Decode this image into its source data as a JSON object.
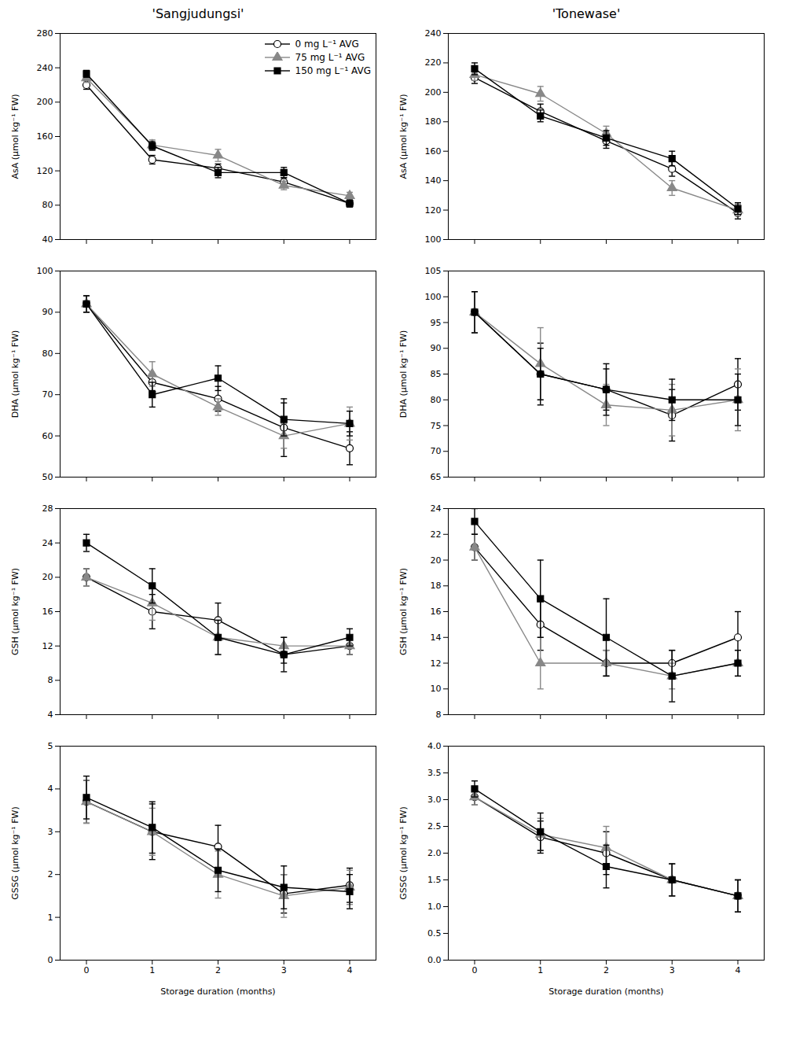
{
  "chart_data": [
    {
      "type": "line",
      "title": "'Sangjudungsi'",
      "ylabel": "AsA (μmol kg⁻¹ FW)",
      "x": [
        0,
        1,
        2,
        3,
        4
      ],
      "xlim": [
        -0.4,
        4.4
      ],
      "xticks": [
        0,
        1,
        2,
        3,
        4
      ],
      "ylim": [
        40,
        280
      ],
      "yticks": [
        40,
        80,
        120,
        160,
        200,
        240,
        280
      ],
      "grid": false,
      "tick_labels": "y",
      "legend": "upper right",
      "series": [
        {
          "name": "0 mg L⁻¹ AVG",
          "color": "#000000",
          "marker": "circle_open",
          "values": [
            220,
            133,
            123,
            107,
            82
          ],
          "yerr": [
            5,
            5,
            5,
            5,
            4
          ]
        },
        {
          "name": "75 mg L⁻¹ AVG",
          "color": "#888888",
          "marker": "triangle",
          "values": [
            228,
            150,
            138,
            103,
            91
          ],
          "yerr": [
            5,
            6,
            7,
            5,
            4
          ]
        },
        {
          "name": "150 mg L⁻¹ AVG",
          "color": "#000000",
          "marker": "square",
          "values": [
            233,
            149,
            118,
            118,
            82
          ],
          "yerr": [
            4,
            5,
            6,
            6,
            4
          ]
        }
      ]
    },
    {
      "type": "line",
      "title": "'Tonewase'",
      "ylabel": "AsA (μmol kg⁻¹ FW)",
      "x": [
        0,
        1,
        2,
        3,
        4
      ],
      "xlim": [
        -0.4,
        4.4
      ],
      "xticks": [
        0,
        1,
        2,
        3,
        4
      ],
      "ylim": [
        100,
        240
      ],
      "yticks": [
        100,
        120,
        140,
        160,
        180,
        200,
        220,
        240
      ],
      "grid": false,
      "tick_labels": "y",
      "series": [
        {
          "name": "0 mg L⁻¹ AVG",
          "color": "#000000",
          "marker": "circle_open",
          "values": [
            210,
            187,
            167,
            148,
            118
          ],
          "yerr": [
            4,
            5,
            5,
            5,
            4
          ]
        },
        {
          "name": "75 mg L⁻¹ AVG",
          "color": "#888888",
          "marker": "triangle",
          "values": [
            212,
            199,
            172,
            135,
            120
          ],
          "yerr": [
            4,
            5,
            5,
            5,
            4
          ]
        },
        {
          "name": "150 mg L⁻¹ AVG",
          "color": "#000000",
          "marker": "square",
          "values": [
            216,
            184,
            169,
            155,
            121
          ],
          "yerr": [
            4,
            4,
            5,
            5,
            4
          ]
        }
      ]
    },
    {
      "type": "line",
      "ylabel": "DHA (μmol kg⁻¹ FW)",
      "x": [
        0,
        1,
        2,
        3,
        4
      ],
      "xlim": [
        -0.4,
        4.4
      ],
      "xticks": [
        0,
        1,
        2,
        3,
        4
      ],
      "ylim": [
        50,
        100
      ],
      "yticks": [
        50,
        60,
        70,
        80,
        90,
        100
      ],
      "grid": false,
      "tick_labels": "y",
      "series": [
        {
          "name": "0 mg L⁻¹ AVG",
          "color": "#000000",
          "marker": "circle_open",
          "values": [
            92,
            73,
            69,
            62,
            57
          ],
          "yerr": [
            2,
            2,
            3,
            7,
            4
          ]
        },
        {
          "name": "75 mg L⁻¹ AVG",
          "color": "#888888",
          "marker": "triangle",
          "values": [
            92,
            75,
            67,
            60,
            63
          ],
          "yerr": [
            2,
            3,
            2,
            3,
            4
          ]
        },
        {
          "name": "150 mg L⁻¹ AVG",
          "color": "#000000",
          "marker": "square",
          "values": [
            92,
            70,
            74,
            64,
            63
          ],
          "yerr": [
            2,
            3,
            3,
            4,
            3
          ]
        }
      ]
    },
    {
      "type": "line",
      "ylabel": "DHA (μmol kg⁻¹ FW)",
      "x": [
        0,
        1,
        2,
        3,
        4
      ],
      "xlim": [
        -0.4,
        4.4
      ],
      "xticks": [
        0,
        1,
        2,
        3,
        4
      ],
      "ylim": [
        65,
        105
      ],
      "yticks": [
        65,
        70,
        75,
        80,
        85,
        90,
        95,
        100,
        105
      ],
      "grid": false,
      "tick_labels": "y",
      "series": [
        {
          "name": "0 mg L⁻¹ AVG",
          "color": "#000000",
          "marker": "circle_open",
          "values": [
            97,
            85,
            82,
            77,
            83
          ],
          "yerr": [
            4,
            6,
            4,
            5,
            5
          ]
        },
        {
          "name": "75 mg L⁻¹ AVG",
          "color": "#888888",
          "marker": "triangle",
          "values": [
            97,
            87,
            79,
            78,
            80
          ],
          "yerr": [
            4,
            7,
            4,
            5,
            6
          ]
        },
        {
          "name": "150 mg L⁻¹ AVG",
          "color": "#000000",
          "marker": "square",
          "values": [
            97,
            85,
            82,
            80,
            80
          ],
          "yerr": [
            4,
            5,
            5,
            4,
            5
          ]
        }
      ]
    },
    {
      "type": "line",
      "ylabel": "GSH (μmol kg⁻¹ FW)",
      "x": [
        0,
        1,
        2,
        3,
        4
      ],
      "xlim": [
        -0.4,
        4.4
      ],
      "xticks": [
        0,
        1,
        2,
        3,
        4
      ],
      "ylim": [
        4,
        28
      ],
      "yticks": [
        4,
        8,
        12,
        16,
        20,
        24,
        28
      ],
      "grid": false,
      "tick_labels": "y",
      "series": [
        {
          "name": "0 mg L⁻¹ AVG",
          "color": "#000000",
          "marker": "circle_open",
          "values": [
            20,
            16,
            15,
            11,
            12
          ],
          "yerr": [
            1,
            2,
            2,
            1,
            1
          ]
        },
        {
          "name": "75 mg L⁻¹ AVG",
          "color": "#888888",
          "marker": "triangle",
          "values": [
            20,
            17,
            13,
            12,
            12
          ],
          "yerr": [
            1,
            2,
            2,
            1,
            1
          ]
        },
        {
          "name": "150 mg L⁻¹ AVG",
          "color": "#000000",
          "marker": "square",
          "values": [
            24,
            19,
            13,
            11,
            13
          ],
          "yerr": [
            1,
            2,
            2,
            2,
            1
          ]
        }
      ]
    },
    {
      "type": "line",
      "ylabel": "GSH (μmol kg⁻¹ FW)",
      "x": [
        0,
        1,
        2,
        3,
        4
      ],
      "xlim": [
        -0.4,
        4.4
      ],
      "xticks": [
        0,
        1,
        2,
        3,
        4
      ],
      "ylim": [
        8,
        24
      ],
      "yticks": [
        8,
        10,
        12,
        14,
        16,
        18,
        20,
        22,
        24
      ],
      "grid": false,
      "tick_labels": "y",
      "series": [
        {
          "name": "0 mg L⁻¹ AVG",
          "color": "#000000",
          "marker": "circle_open",
          "values": [
            21,
            15,
            12,
            12,
            14
          ],
          "yerr": [
            1,
            2,
            1,
            1,
            2
          ]
        },
        {
          "name": "75 mg L⁻¹ AVG",
          "color": "#888888",
          "marker": "triangle",
          "values": [
            21,
            12,
            12,
            11,
            12
          ],
          "yerr": [
            1,
            2,
            1,
            1,
            1
          ]
        },
        {
          "name": "150 mg L⁻¹ AVG",
          "color": "#000000",
          "marker": "square",
          "values": [
            23,
            17,
            14,
            11,
            12
          ],
          "yerr": [
            1,
            3,
            3,
            2,
            1
          ]
        }
      ]
    },
    {
      "type": "line",
      "ylabel": "GSSG (μmol kg⁻¹ FW)",
      "xlabel": "Storage duration (months)",
      "x": [
        0,
        1,
        2,
        3,
        4
      ],
      "xlim": [
        -0.4,
        4.4
      ],
      "xticks": [
        0,
        1,
        2,
        3,
        4
      ],
      "ylim": [
        0,
        5
      ],
      "yticks": [
        0,
        1,
        2,
        3,
        4,
        5
      ],
      "grid": false,
      "series": [
        {
          "name": "0 mg L⁻¹ AVG",
          "color": "#000000",
          "marker": "circle_open",
          "values": [
            3.7,
            3.0,
            2.65,
            1.55,
            1.75
          ],
          "yerr": [
            0.5,
            0.65,
            0.5,
            0.45,
            0.4
          ]
        },
        {
          "name": "75 mg L⁻¹ AVG",
          "color": "#888888",
          "marker": "triangle",
          "values": [
            3.7,
            3.0,
            2.0,
            1.5,
            1.7
          ],
          "yerr": [
            0.5,
            0.55,
            0.55,
            0.5,
            0.4
          ]
        },
        {
          "name": "150 mg L⁻¹ AVG",
          "color": "#000000",
          "marker": "square",
          "values": [
            3.8,
            3.1,
            2.1,
            1.7,
            1.6
          ],
          "yerr": [
            0.5,
            0.6,
            0.5,
            0.5,
            0.4
          ]
        }
      ]
    },
    {
      "type": "line",
      "ylabel": "GSSG (μmol kg⁻¹ FW)",
      "xlabel": "Storage duration (months)",
      "x": [
        0,
        1,
        2,
        3,
        4
      ],
      "xlim": [
        -0.4,
        4.4
      ],
      "xticks": [
        0,
        1,
        2,
        3,
        4
      ],
      "ylim": [
        0.0,
        4.0
      ],
      "yticks": [
        {
          "value": 0,
          "label": "0.0"
        },
        0.5,
        {
          "value": 1,
          "label": "1.0"
        },
        1.5,
        {
          "value": 2,
          "label": "2.0"
        },
        2.5,
        {
          "value": 3,
          "label": "3.0"
        },
        3.5,
        {
          "value": 4,
          "label": "4.0"
        }
      ],
      "grid": false,
      "series": [
        {
          "name": "0 mg L⁻¹ AVG",
          "color": "#000000",
          "marker": "circle_open",
          "values": [
            3.05,
            2.3,
            2.0,
            1.5,
            1.2
          ],
          "yerr": [
            0.15,
            0.3,
            0.4,
            0.3,
            0.3
          ]
        },
        {
          "name": "75 mg L⁻¹ AVG",
          "color": "#888888",
          "marker": "triangle",
          "values": [
            3.05,
            2.35,
            2.1,
            1.5,
            1.2
          ],
          "yerr": [
            0.15,
            0.3,
            0.4,
            0.3,
            0.3
          ]
        },
        {
          "name": "150 mg L⁻¹ AVG",
          "color": "#000000",
          "marker": "square",
          "values": [
            3.2,
            2.4,
            1.75,
            1.5,
            1.2
          ],
          "yerr": [
            0.15,
            0.35,
            0.4,
            0.3,
            0.3
          ]
        }
      ]
    }
  ]
}
